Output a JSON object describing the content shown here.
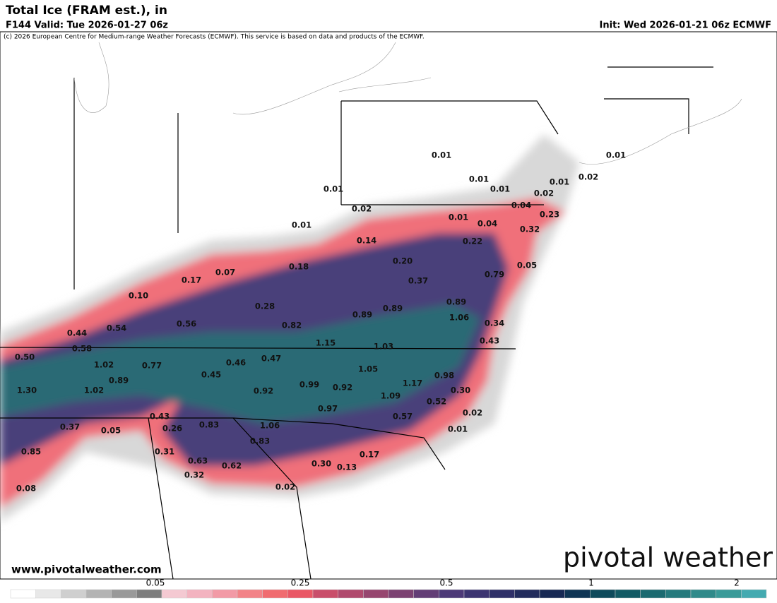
{
  "header": {
    "title": "Total Ice (FRAM est.), in",
    "valid": "F144 Valid: Tue 2026-01-27 06z",
    "init": "Init: Wed 2026-01-21 06z ECMWF",
    "copyright": "(c) 2026 European Centre for Medium-range Weather Forecasts (ECMWF). This service is based on data and products of the ECMWF."
  },
  "map": {
    "labels": [
      "0.01",
      "0.01",
      "0.01",
      "0.01",
      "0.02",
      "0.01",
      "0.01",
      "0.02",
      "0.02",
      "0.04",
      "0.23",
      "0.01",
      "0.04",
      "0.32",
      "0.01",
      "0.14",
      "0.22",
      "0.07",
      "0.17",
      "0.18",
      "0.20",
      "0.37",
      "0.79",
      "0.05",
      "0.10",
      "0.28",
      "0.89",
      "0.89",
      "0.89",
      "1.06",
      "0.82",
      "0.34",
      "0.44",
      "0.54",
      "0.56",
      "0.43",
      "0.50",
      "0.58",
      "1.15",
      "1.03",
      "1.02",
      "0.77",
      "0.46",
      "0.47",
      "1.05",
      "0.98",
      "1.30",
      "1.02",
      "0.89",
      "0.45",
      "0.92",
      "0.99",
      "0.92",
      "1.17",
      "0.30",
      "1.09",
      "0.52",
      "0.97",
      "0.57",
      "0.02",
      "0.43",
      "0.37",
      "0.05",
      "0.26",
      "0.83",
      "1.06",
      "0.01",
      "0.85",
      "0.31",
      "0.83",
      "0.17",
      "0.63",
      "0.62",
      "0.30",
      "0.13",
      "0.32",
      "0.08",
      "0.02"
    ]
  },
  "website": "www.pivotalweather.com",
  "logo": "pivotal weather",
  "colorbar": {
    "labels": [
      "0.05",
      "0.25",
      "0.5",
      "1",
      "2"
    ]
  }
}
